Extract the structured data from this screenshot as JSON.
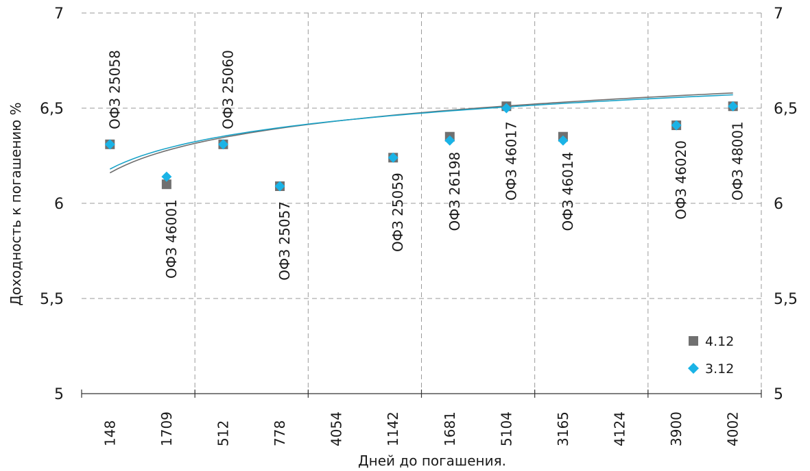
{
  "chart_data": {
    "type": "scatter",
    "title": "",
    "xlabel": "Дней до погашения.",
    "ylabel": "Доходность к погашению %",
    "categories": [
      "148",
      "1709",
      "512",
      "778",
      "4054",
      "1142",
      "1681",
      "5104",
      "3165",
      "4124",
      "3900",
      "4002"
    ],
    "ylim": [
      5,
      7
    ],
    "yticks": [
      "5",
      "5,5",
      "6",
      "6,5",
      "7"
    ],
    "ytick_values": [
      5,
      5.5,
      6,
      6.5,
      7
    ],
    "grid": true,
    "legend_position": "bottom-right",
    "series": [
      {
        "name": "4.12",
        "marker": "square",
        "color": "#707070",
        "values": [
          6.31,
          6.1,
          6.31,
          6.09,
          null,
          6.24,
          6.35,
          6.51,
          6.35,
          null,
          6.41,
          6.51
        ]
      },
      {
        "name": "3.12",
        "marker": "diamond",
        "color": "#1ab3e6",
        "values": [
          6.31,
          6.14,
          6.31,
          6.09,
          null,
          6.24,
          6.33,
          6.5,
          6.33,
          null,
          6.41,
          6.51
        ]
      }
    ],
    "point_labels": [
      {
        "text": "ОФЗ 25058",
        "category": "148",
        "placement": "above"
      },
      {
        "text": "ОФЗ 46001",
        "category": "1709",
        "placement": "below"
      },
      {
        "text": "ОФЗ 25060",
        "category": "512",
        "placement": "above"
      },
      {
        "text": "ОФЗ 25057",
        "category": "778",
        "placement": "below"
      },
      {
        "text": "ОФЗ 25059",
        "category": "1142",
        "placement": "below"
      },
      {
        "text": "ОФЗ 26198",
        "category": "1681",
        "placement": "below"
      },
      {
        "text": "ОФЗ 46017",
        "category": "5104",
        "placement": "below"
      },
      {
        "text": "ОФЗ 46014",
        "category": "3165",
        "placement": "below"
      },
      {
        "text": "ОФЗ 46020",
        "category": "3900",
        "placement": "below"
      },
      {
        "text": "ОФЗ 48001",
        "category": "4002",
        "placement": "below"
      }
    ],
    "trendlines": [
      {
        "series": "4.12",
        "type": "logarithmic",
        "color": "#6f6f6f",
        "from": [
          1,
          6.16
        ],
        "to": [
          12,
          6.58
        ]
      },
      {
        "series": "3.12",
        "type": "logarithmic",
        "color": "#1aa3c8",
        "from": [
          1,
          6.18
        ],
        "to": [
          12,
          6.57
        ]
      }
    ]
  }
}
